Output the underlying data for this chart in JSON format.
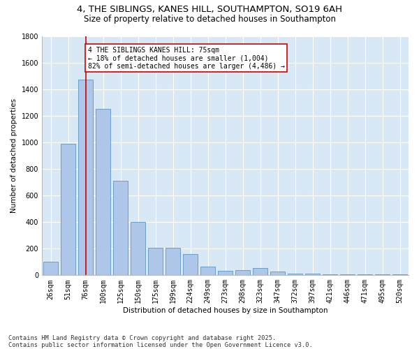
{
  "title1": "4, THE SIBLINGS, KANES HILL, SOUTHAMPTON, SO19 6AH",
  "title2": "Size of property relative to detached houses in Southampton",
  "xlabel": "Distribution of detached houses by size in Southampton",
  "ylabel": "Number of detached properties",
  "categories": [
    "26sqm",
    "51sqm",
    "76sqm",
    "100sqm",
    "125sqm",
    "150sqm",
    "175sqm",
    "199sqm",
    "224sqm",
    "249sqm",
    "273sqm",
    "298sqm",
    "323sqm",
    "347sqm",
    "372sqm",
    "397sqm",
    "421sqm",
    "446sqm",
    "471sqm",
    "495sqm",
    "520sqm"
  ],
  "values": [
    100,
    990,
    1470,
    1250,
    710,
    400,
    205,
    205,
    160,
    65,
    35,
    40,
    55,
    30,
    10,
    10,
    5,
    5,
    5,
    5,
    5
  ],
  "bar_color": "#aec6e8",
  "bar_edge_color": "#6a9ec8",
  "property_bar_index": 2,
  "vline_color": "#cc0000",
  "annotation_text": "4 THE SIBLINGS KANES HILL: 75sqm\n← 18% of detached houses are smaller (1,004)\n82% of semi-detached houses are larger (4,486) →",
  "annotation_box_color": "#ffffff",
  "annotation_box_edgecolor": "#cc0000",
  "ylim": [
    0,
    1800
  ],
  "yticks": [
    0,
    200,
    400,
    600,
    800,
    1000,
    1200,
    1400,
    1600,
    1800
  ],
  "background_color": "#d8e8f5",
  "footer_text": "Contains HM Land Registry data © Crown copyright and database right 2025.\nContains public sector information licensed under the Open Government Licence v3.0.",
  "title1_fontsize": 9.5,
  "title2_fontsize": 8.5,
  "axis_label_fontsize": 7.5,
  "tick_fontsize": 7,
  "annotation_fontsize": 7,
  "footer_fontsize": 6.2,
  "ylabel_fontsize": 7.5
}
